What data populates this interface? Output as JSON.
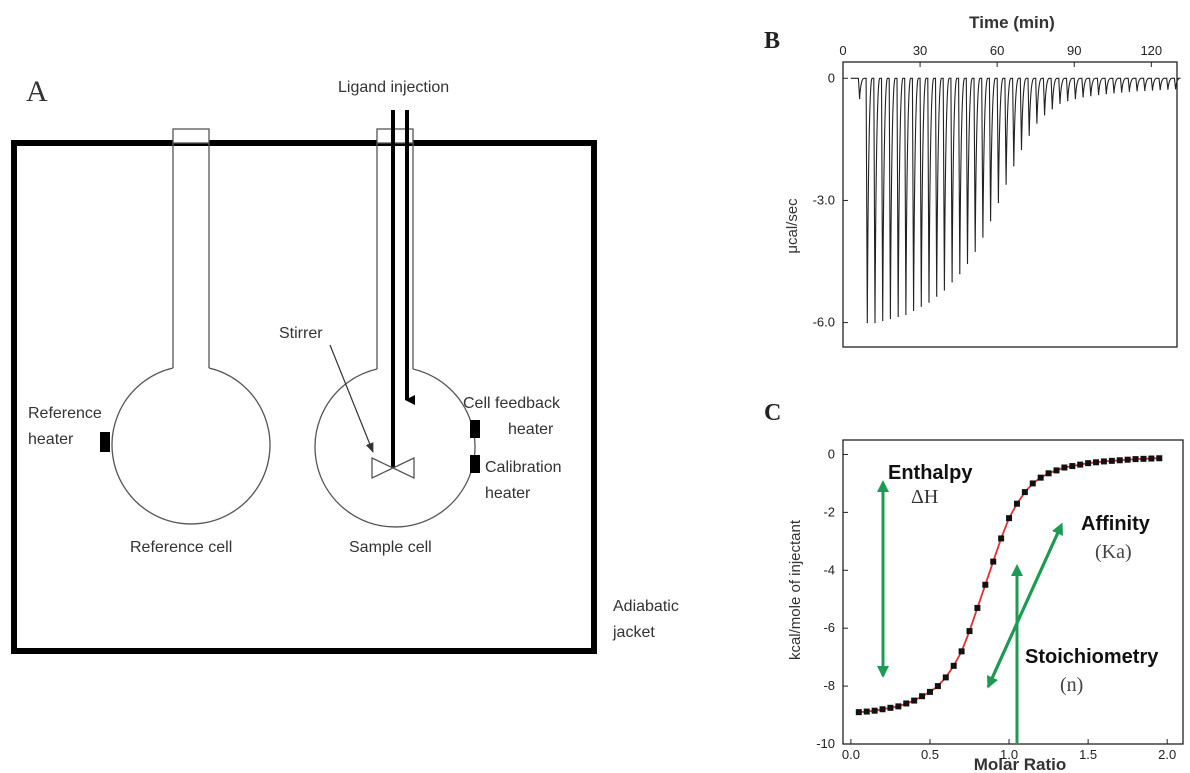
{
  "panel_a": {
    "label": "A",
    "ligand_injection": "Ligand injection",
    "stirrer": "Stirrer",
    "reference_heater_line1": "Reference",
    "reference_heater_line2": "heater",
    "cell_feedback_line1": "Cell feedback",
    "cell_feedback_line2": "heater",
    "calibration_line1": "Calibration",
    "calibration_line2": "heater",
    "reference_cell": "Reference cell",
    "sample_cell": "Sample cell",
    "adiabatic_line1": "Adiabatic",
    "adiabatic_line2": "jacket"
  },
  "panel_b": {
    "label": "B",
    "xlabel": "Time (min)",
    "ylabel": "μcal/sec",
    "xticks": [
      "0",
      "30",
      "60",
      "90",
      "120"
    ],
    "yticks": [
      "0",
      "-3.0",
      "-6.0"
    ]
  },
  "panel_c": {
    "label": "C",
    "xlabel": "Molar Ratio",
    "ylabel": "kcal/mole of injectant",
    "xticks": [
      "0.0",
      "0.5",
      "1.0",
      "1.5",
      "2.0"
    ],
    "yticks": [
      "0",
      "-2",
      "-4",
      "-6",
      "-8",
      "-10"
    ],
    "enthalpy": "Enthalpy",
    "enthalpy_sym": "ΔH",
    "affinity": "Affinity",
    "affinity_sym": "(Ka)",
    "stoich": "Stoichiometry",
    "stoich_sym": "(n)",
    "arrow_color": "#1e9a55",
    "fit_color": "#e03030"
  },
  "chart_data": [
    {
      "type": "line",
      "panel": "B",
      "xlabel": "Time (min)",
      "ylabel": "μcal/sec",
      "xlim": [
        0,
        130
      ],
      "ylim": [
        -6.6,
        0.4
      ],
      "injection_times": [
        6,
        9,
        12,
        15,
        18,
        21,
        24,
        27,
        30,
        33,
        36,
        39,
        42,
        45,
        48,
        51,
        54,
        57,
        60,
        63,
        66,
        69,
        72,
        75,
        78,
        81,
        84,
        87,
        90,
        93,
        96,
        99,
        102,
        105,
        108,
        111,
        114,
        117,
        120,
        123,
        126,
        129
      ],
      "peak_values": [
        -0.5,
        -6.0,
        -6.0,
        -5.95,
        -5.9,
        -5.85,
        -5.8,
        -5.7,
        -5.6,
        -5.5,
        -5.35,
        -5.2,
        -5.0,
        -4.8,
        -4.55,
        -4.25,
        -3.9,
        -3.5,
        -3.05,
        -2.6,
        -2.15,
        -1.75,
        -1.4,
        -1.1,
        -0.9,
        -0.75,
        -0.62,
        -0.55,
        -0.5,
        -0.46,
        -0.43,
        -0.4,
        -0.38,
        -0.36,
        -0.34,
        -0.32,
        -0.31,
        -0.3,
        -0.29,
        -0.28,
        -0.27,
        -0.26
      ]
    },
    {
      "type": "scatter",
      "panel": "C",
      "xlabel": "Molar Ratio",
      "ylabel": "kcal/mole of injectant",
      "xlim": [
        -0.05,
        2.1
      ],
      "ylim": [
        -10,
        0.5
      ],
      "x": [
        0.05,
        0.1,
        0.15,
        0.2,
        0.25,
        0.3,
        0.35,
        0.4,
        0.45,
        0.5,
        0.55,
        0.6,
        0.65,
        0.7,
        0.75,
        0.8,
        0.85,
        0.9,
        0.95,
        1.0,
        1.05,
        1.1,
        1.15,
        1.2,
        1.25,
        1.3,
        1.35,
        1.4,
        1.45,
        1.5,
        1.55,
        1.6,
        1.65,
        1.7,
        1.75,
        1.8,
        1.85,
        1.9,
        1.95
      ],
      "y": [
        -8.9,
        -8.88,
        -8.85,
        -8.8,
        -8.75,
        -8.7,
        -8.6,
        -8.5,
        -8.35,
        -8.2,
        -8.0,
        -7.7,
        -7.3,
        -6.8,
        -6.1,
        -5.3,
        -4.5,
        -3.7,
        -2.9,
        -2.2,
        -1.7,
        -1.3,
        -1.0,
        -0.8,
        -0.65,
        -0.55,
        -0.45,
        -0.4,
        -0.35,
        -0.3,
        -0.27,
        -0.24,
        -0.22,
        -0.2,
        -0.18,
        -0.16,
        -0.15,
        -0.14,
        -0.13
      ]
    }
  ]
}
